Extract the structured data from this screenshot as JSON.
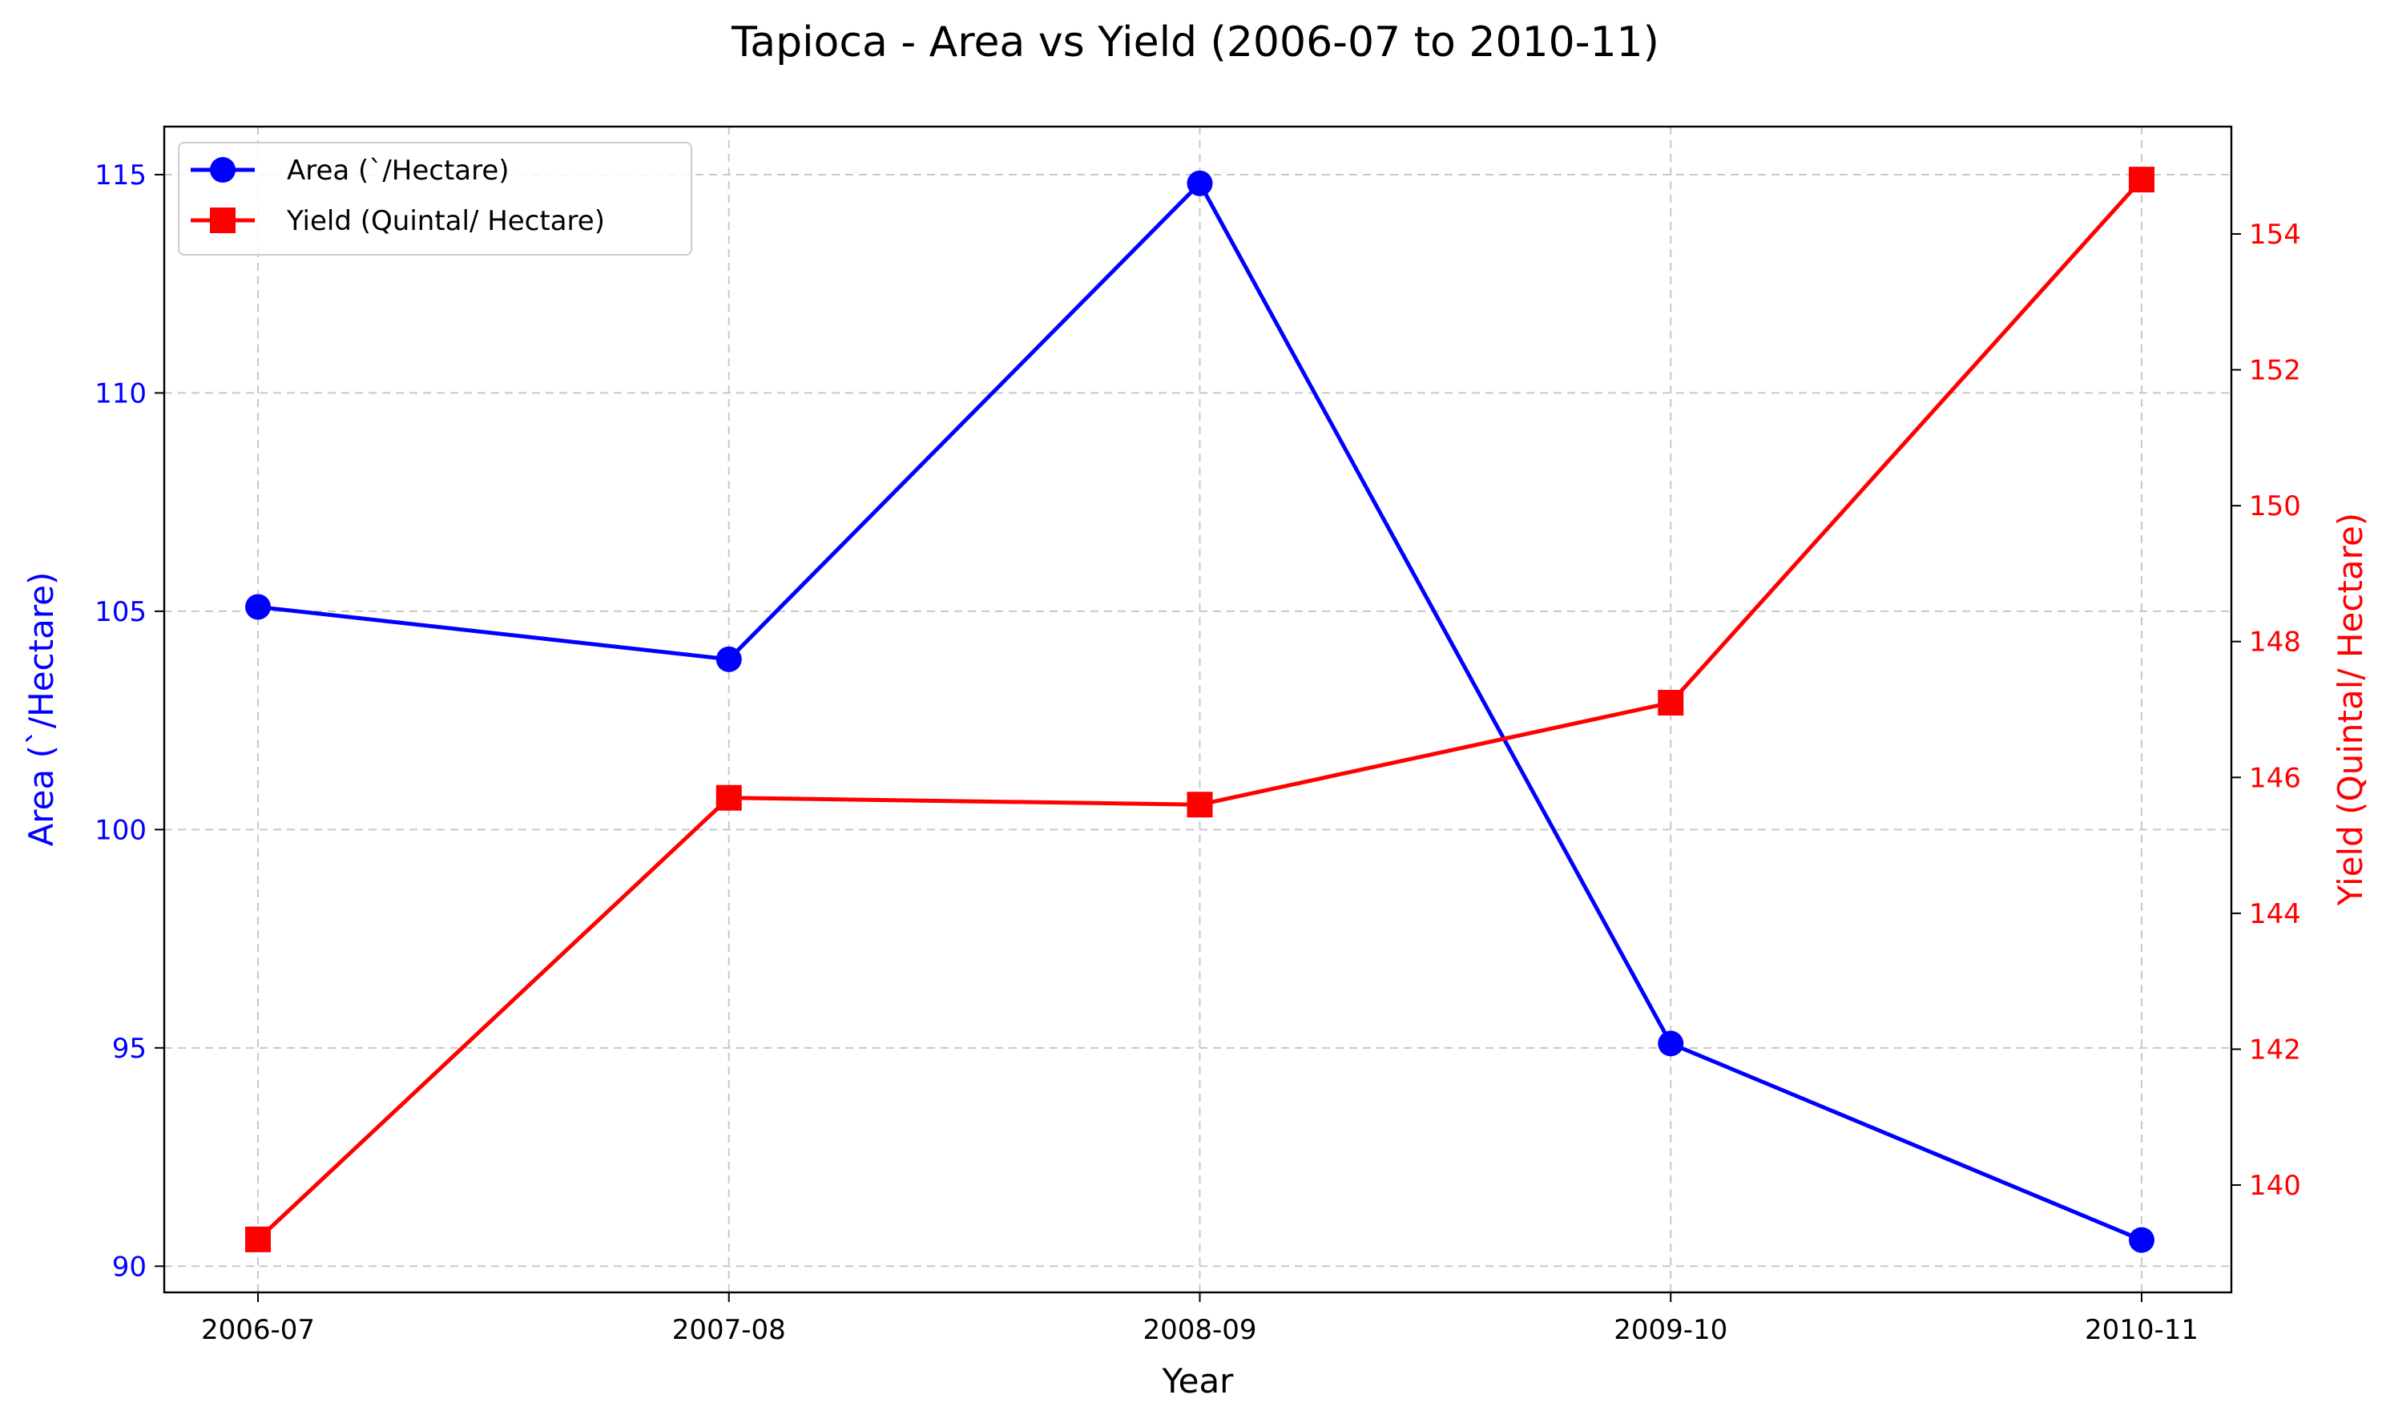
{
  "chart_data": {
    "type": "line",
    "title": "Tapioca - Area vs Yield (2006-07 to 2010-11)",
    "xlabel": "Year",
    "categories": [
      "2006-07",
      "2007-08",
      "2008-09",
      "2009-10",
      "2010-11"
    ],
    "series": [
      {
        "name": "Area (`/Hectare)",
        "axis": "left",
        "color": "#0000ff",
        "marker": "circle",
        "values": [
          105.1,
          103.9,
          114.8,
          95.1,
          90.6
        ]
      },
      {
        "name": "Yield (Quintal/ Hectare)",
        "axis": "right",
        "color": "#ff0000",
        "marker": "square",
        "values": [
          139.2,
          145.7,
          145.6,
          147.1,
          154.8
        ]
      }
    ],
    "y_left": {
      "label": "Area (`/Hectare)",
      "color": "#0000ff",
      "range": [
        89.4,
        116.1
      ],
      "ticks": [
        90,
        95,
        100,
        105,
        110,
        115
      ]
    },
    "y_right": {
      "label": "Yield (Quintal/ Hectare)",
      "color": "#ff0000",
      "range": [
        138.42,
        155.58
      ],
      "ticks": [
        140,
        142,
        144,
        146,
        148,
        150,
        152,
        154
      ]
    },
    "grid": true,
    "legend": "upper-left"
  }
}
